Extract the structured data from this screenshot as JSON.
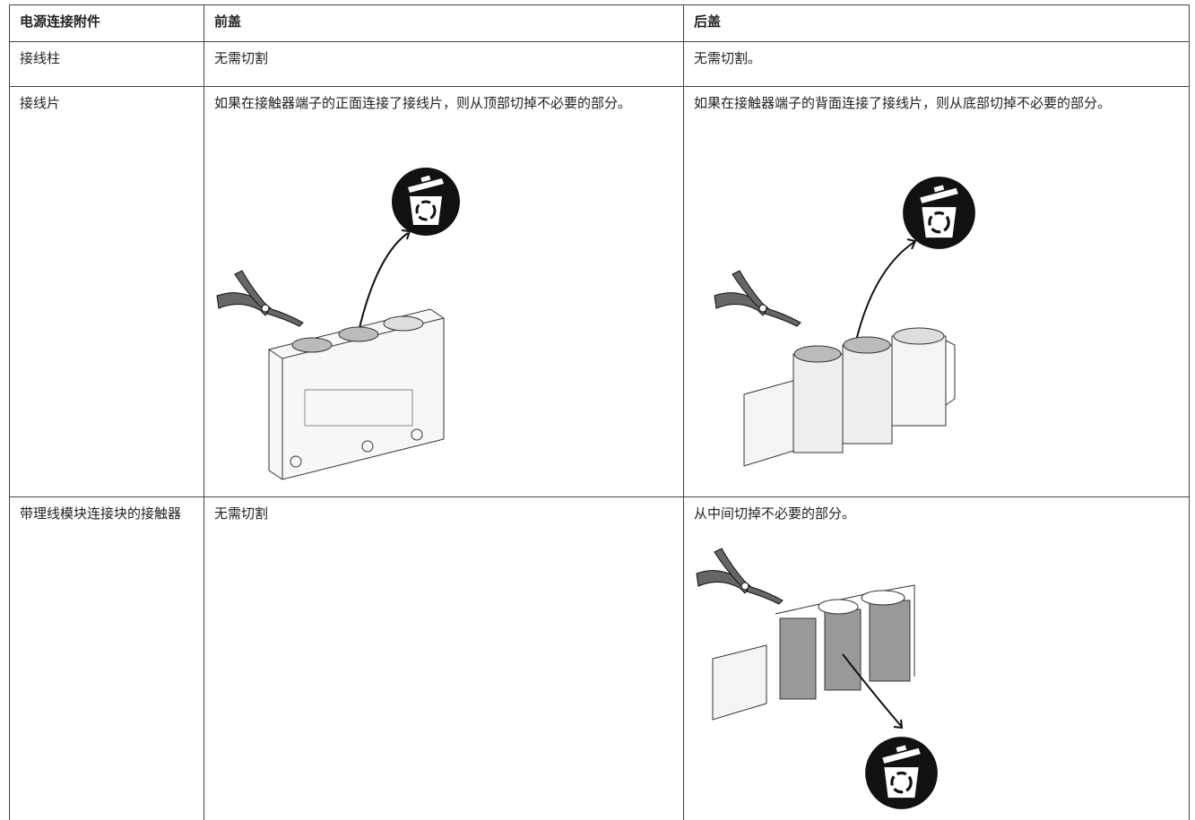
{
  "table": {
    "header": [
      "电源连接附件",
      "前盖",
      "后盖"
    ],
    "rows": [
      [
        "接线柱",
        "无需切割",
        "无需切割。"
      ],
      [
        "接线片",
        "如果在接触器端子的正面连接了接线片，则从顶部切掉不必要的部分。",
        "如果在接触器端子的背面连接了接线片，则从底部切掉不必要的部分。"
      ],
      [
        "带理线模块连接块的接触器",
        "无需切割",
        "从中间切掉不必要的部分。"
      ]
    ]
  }
}
